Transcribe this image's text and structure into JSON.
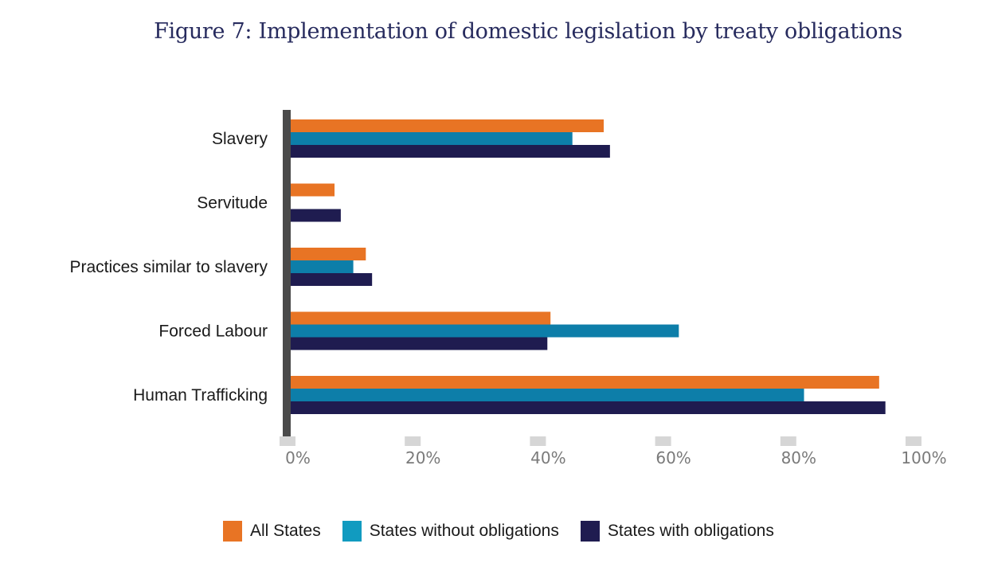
{
  "chart_data": {
    "type": "bar",
    "orientation": "horizontal",
    "title": "Figure 7: Implementation of domestic legislation by treaty obligations",
    "xlabel": "",
    "ylabel": "",
    "categories": [
      "Slavery",
      "Servitude",
      "Practices similar to slavery",
      "Forced Labour",
      "Human Trafficking"
    ],
    "series": [
      {
        "name": "All States",
        "color": "#e87424",
        "values": [
          50,
          7,
          12,
          41.5,
          94
        ]
      },
      {
        "name": "States without obligations",
        "color": "#0d7ea9",
        "values": [
          45,
          0,
          10,
          62,
          82
        ]
      },
      {
        "name": "States with obligations",
        "color": "#1f1c50",
        "values": [
          51,
          8,
          13,
          41,
          95
        ]
      }
    ],
    "xlim": [
      0,
      100
    ],
    "x_ticks": [
      0,
      20,
      40,
      60,
      80,
      100
    ],
    "x_tick_labels": [
      "0%",
      "20%",
      "40%",
      "60%",
      "80%",
      "100%"
    ],
    "grid": false,
    "legend_position": "bottom",
    "axis_color": "#4a4a4a",
    "tick_mark_color": "#d6d6d6"
  }
}
